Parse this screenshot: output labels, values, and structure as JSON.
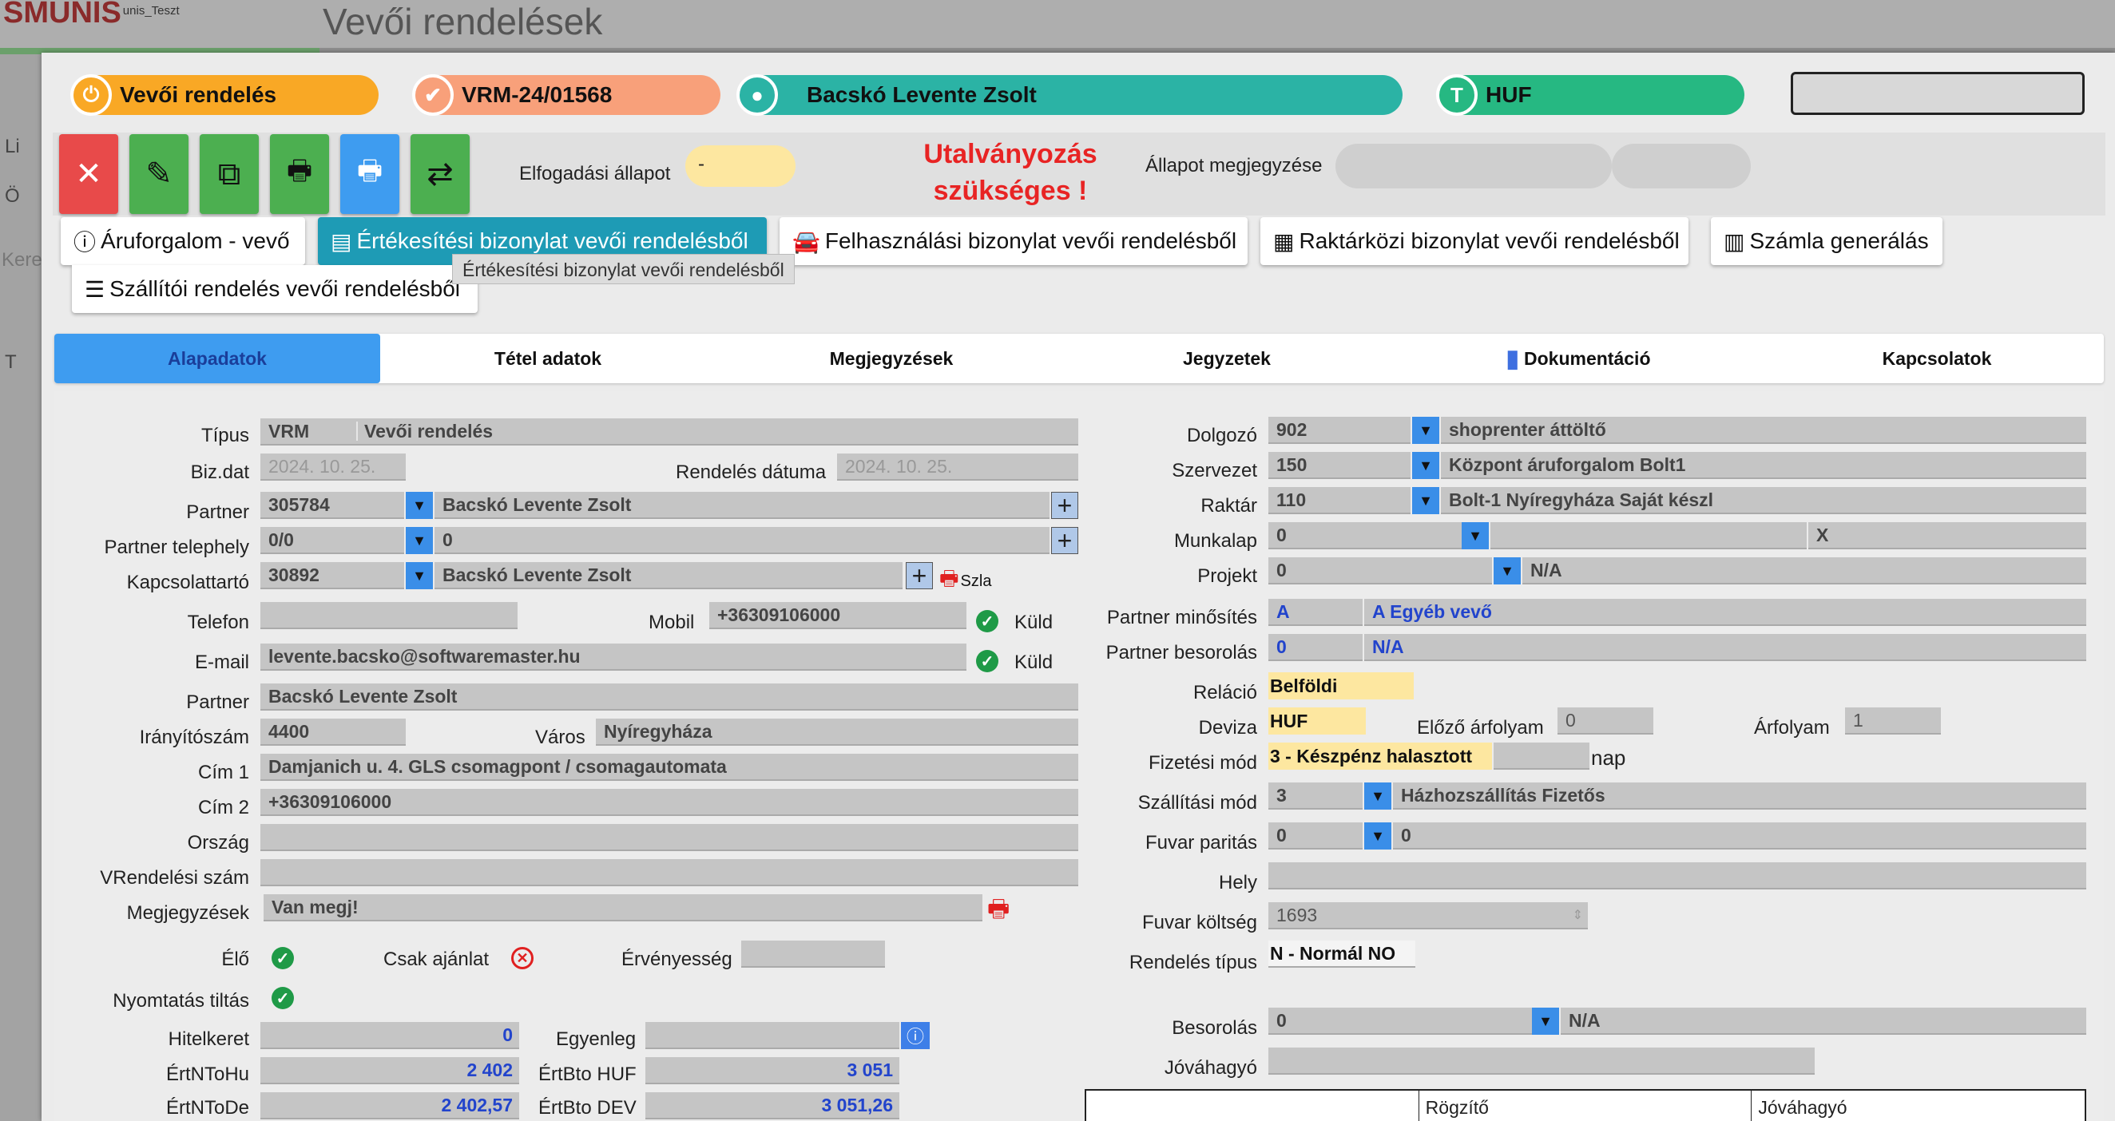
{
  "app": {
    "logo": "SMUNIS",
    "logo_sub": "unis_Teszt",
    "page_title": "Vevői rendelések"
  },
  "background": {
    "side_items": [
      "Li",
      "Ö",
      "Kere",
      "T"
    ]
  },
  "header": {
    "pills": [
      {
        "label": "Vevői rendelés",
        "color": "#f9a825",
        "icon": "plug-icon"
      },
      {
        "label": "VRM-24/01568",
        "color": "#f8a07a",
        "icon": "badge-check-icon"
      },
      {
        "label": "Bacskó Levente Zsolt",
        "color": "#2bb3a5",
        "icon": "person-icon"
      },
      {
        "label": "HUF",
        "color": "#26b882",
        "icon": "text-size-icon"
      }
    ]
  },
  "toolbar": {
    "buttons": [
      {
        "name": "close-button",
        "glyph": "✕",
        "color": "#e84a4a"
      },
      {
        "name": "edit-button",
        "glyph": "✎",
        "color": "#4caf50"
      },
      {
        "name": "copy-button",
        "glyph": "⧉",
        "color": "#4caf50"
      },
      {
        "name": "print-button",
        "glyph": "🖶",
        "color": "#4caf50"
      },
      {
        "name": "print-alt-button",
        "glyph": "🖶",
        "color": "#3e9cf0"
      },
      {
        "name": "swap-button",
        "glyph": "⇄",
        "color": "#4caf50"
      }
    ],
    "acceptance_label": "Elfogadási állapot",
    "acceptance_value": "-",
    "warning_line1": "Utalványozás",
    "warning_line2": "szükséges !",
    "status_note_label": "Állapot megjegyzése"
  },
  "actions": [
    {
      "label": "Áruforgalom - vevő",
      "icon": "info-icon"
    },
    {
      "label": "Értékesítési bizonylat vevői rendelésből",
      "icon": "document-icon"
    },
    {
      "label": "Felhasználási bizonylat vevői rendelésből",
      "icon": "car-icon"
    },
    {
      "label": "Raktárközi bizonylat vevői rendelésből",
      "icon": "warehouse-icon"
    },
    {
      "label": "Számla generálás",
      "icon": "invoice-icon"
    },
    {
      "label": "Szállítói rendelés vevői rendelésből",
      "icon": "list-icon"
    }
  ],
  "tooltip": "Értékesítési bizonylat vevői rendelésből",
  "tabs": [
    "Alapadatok",
    "Tétel adatok",
    "Megjegyzések",
    "Jegyzetek",
    "Dokumentáció",
    "Kapcsolatok"
  ],
  "left": {
    "tipus_label": "Típus",
    "tipus_code": "VRM",
    "tipus_name": "Vevői rendelés",
    "bizdat_label": "Biz.dat",
    "bizdat_value": "2024. 10. 25.",
    "rendeles_datum_label": "Rendelés dátuma",
    "rendeles_datum_value": "2024. 10. 25.",
    "partner_label": "Partner",
    "partner_code": "305784",
    "partner_name": "Bacskó Levente Zsolt",
    "telephely_label": "Partner telephely",
    "telephely_code": "0/0",
    "telephely_name": "0",
    "kapcsolat_label": "Kapcsolattartó",
    "kapcsolat_code": "30892",
    "kapcsolat_name": "Bacskó Levente Zsolt",
    "szla": "Szla",
    "telefon_label": "Telefon",
    "telefon_value": "",
    "mobil_label": "Mobil",
    "mobil_value": "+36309106000",
    "kuld1": "Küld",
    "email_label": "E-mail",
    "email_value": "levente.bacsko@softwaremaster.hu",
    "kuld2": "Küld",
    "partner2_label": "Partner",
    "partner2_value": "Bacskó Levente Zsolt",
    "irsz_label": "Irányítószám",
    "irsz_value": "4400",
    "varos_label": "Város",
    "varos_value": "Nyíregyháza",
    "cim1_label": "Cím 1",
    "cim1_value": "Damjanich u. 4. GLS csomagpont / csomagautomata",
    "cim2_label": "Cím 2",
    "cim2_value": "+36309106000",
    "orszag_label": "Ország",
    "orszag_value": "",
    "vrend_label": "VRendelési szám",
    "vrend_value": "",
    "megj_label": "Megjegyzések",
    "megj_value": "Van megj!",
    "elo_label": "Élő",
    "csak_label": "Csak ajánlat",
    "erv_label": "Érvényesség",
    "nyomt_label": "Nyomtatás tiltás",
    "hitel_label": "Hitelkeret",
    "hitel_value": "0",
    "egyenleg_label": "Egyenleg",
    "egyenleg_value": "",
    "ertnhu_label": "ÉrtNToHu",
    "ertnhu_value": "2 402",
    "ertbhuf_label": "ÉrtBto HUF",
    "ertbhuf_value": "3 051",
    "ertnde_label": "ÉrtNToDe",
    "ertnde_value": "2 402,57",
    "ertbdev_label": "ÉrtBto DEV",
    "ertbdev_value": "3 051,26"
  },
  "right": {
    "dolgozo_label": "Dolgozó",
    "dolgozo_code": "902",
    "dolgozo_name": "shoprenter áttöltő",
    "szervezet_label": "Szervezet",
    "szervezet_code": "150",
    "szervezet_name": "Központ áruforgalom Bolt1",
    "raktar_label": "Raktár",
    "raktar_code": "110",
    "raktar_name": "Bolt-1 Nyíregyháza Saját készl",
    "munkalap_label": "Munkalap",
    "munkalap_code": "0",
    "munkalap_x": "X",
    "projekt_label": "Projekt",
    "projekt_code": "0",
    "projekt_name": "N/A",
    "minosites_label": "Partner minősítés",
    "minosites_code": "A",
    "minosites_name": "A Egyéb vevő",
    "besorolas_label": "Partner besorolás",
    "besorolas_code": "0",
    "besorolas_name": "N/A",
    "relacio_label": "Reláció",
    "relacio_value": "Belföldi",
    "deviza_label": "Deviza",
    "deviza_value": "HUF",
    "elozo_label": "Előző árfolyam",
    "elozo_value": "0",
    "arfolyam_label": "Árfolyam",
    "arfolyam_value": "1",
    "fizetes_label": "Fizetési mód",
    "fizetes_value": "3 - Készpénz halasztott",
    "nap": "nap",
    "szallitas_label": "Szállítási mód",
    "szallitas_code": "3",
    "szallitas_name": "Házhozszállítás Fizetős",
    "paritas_label": "Fuvar paritás",
    "paritas_code": "0",
    "paritas_name": "0",
    "hely_label": "Hely",
    "hely_value": "",
    "koltseg_label": "Fuvar költség",
    "koltseg_value": "1693",
    "tipus_label": "Rendelés típus",
    "tipus_value": "N - Normál NO",
    "besorolas2_label": "Besorolás",
    "besorolas2_code": "0",
    "besorolas2_name": "N/A",
    "jovahagyo_label": "Jóváhagyó",
    "jovahagyo_value": "",
    "table_headers": [
      "",
      "Rögzítő",
      "Jóváhagyó"
    ]
  }
}
